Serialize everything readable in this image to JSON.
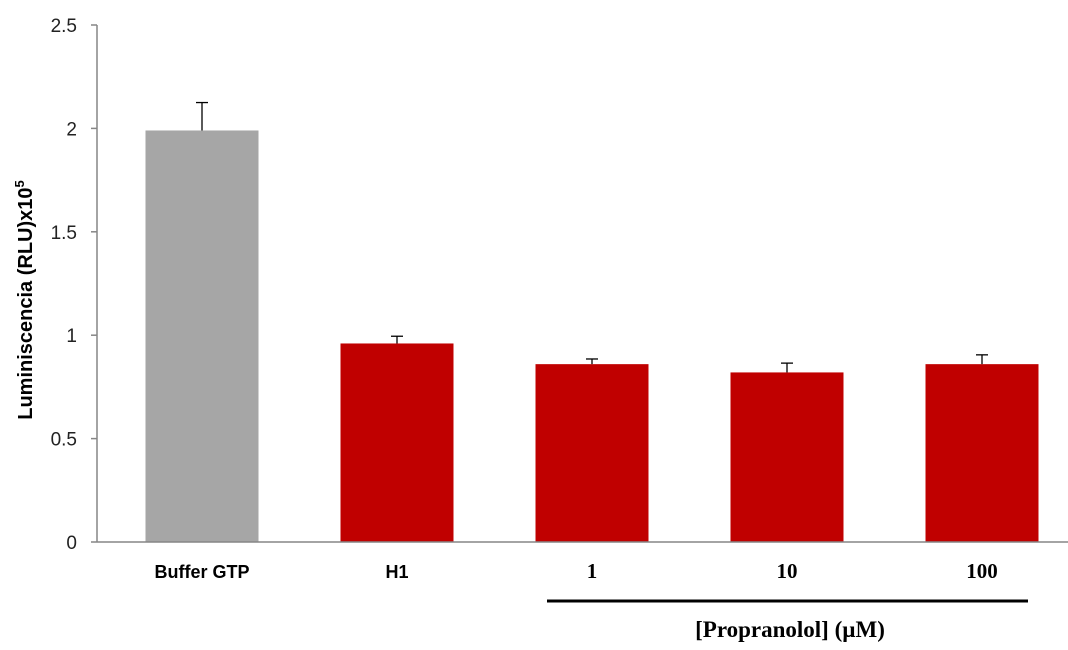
{
  "chart_data": {
    "type": "bar",
    "categories": [
      "Buffer GTP",
      "H1",
      "1",
      "10",
      "100"
    ],
    "values": [
      1.99,
      0.96,
      0.86,
      0.82,
      0.86
    ],
    "errors": [
      0.135,
      0.035,
      0.025,
      0.045,
      0.045
    ],
    "colors": [
      "#a6a6a6",
      "#c00000",
      "#c00000",
      "#c00000",
      "#c00000"
    ],
    "ylabel_main": "Luminiscencia (RLU)x10",
    "ylabel_sup": "5",
    "ylim": [
      0,
      2.5
    ],
    "yticks": [
      "0",
      "0.5",
      "1",
      "1.5",
      "2",
      "2.5"
    ],
    "grid": false,
    "group_label": "[Propranolol] (µM)"
  }
}
